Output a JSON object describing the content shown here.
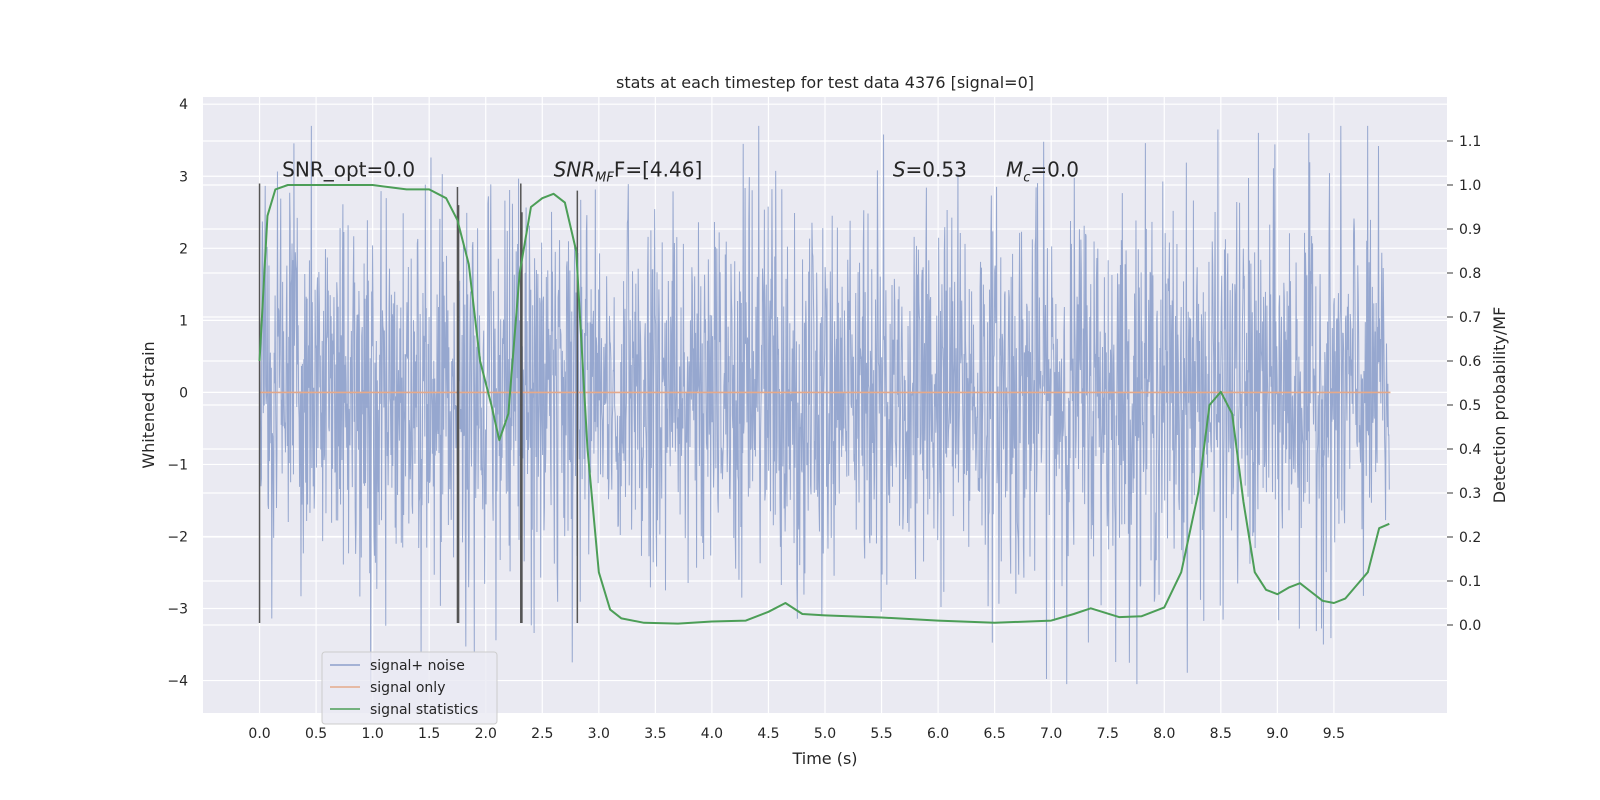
{
  "chart_data": {
    "type": "line",
    "title": "stats at each timestep for test data 4376 [signal=0]",
    "xlabel": "Time (s)",
    "ylabel_left": "Whitened strain",
    "ylabel_right": "Detection probability/MF",
    "xlim": [
      -0.5,
      10.5
    ],
    "ylim_left": [
      -4.45,
      4.1
    ],
    "ylim_right": [
      -0.2,
      1.2
    ],
    "x_ticks": [
      0.0,
      0.5,
      1.0,
      1.5,
      2.0,
      2.5,
      3.0,
      3.5,
      4.0,
      4.5,
      5.0,
      5.5,
      6.0,
      6.5,
      7.0,
      7.5,
      8.0,
      8.5,
      9.0,
      9.5
    ],
    "x_tick_labels": [
      "0.0",
      "0.5",
      "1.0",
      "1.5",
      "2.0",
      "2.5",
      "3.0",
      "3.5",
      "4.0",
      "4.5",
      "5.0",
      "5.5",
      "6.0",
      "6.5",
      "7.0",
      "7.5",
      "8.0",
      "8.5",
      "9.0",
      "9.5"
    ],
    "y_ticks_left": [
      4,
      3,
      2,
      1,
      0,
      -1,
      -2,
      -3,
      -4
    ],
    "y_tick_labels_left": [
      "4",
      "3",
      "2",
      "1",
      "0",
      "−1",
      "−2",
      "−3",
      "−4"
    ],
    "y_ticks_right": [
      1.1,
      1.0,
      0.9,
      0.8,
      0.7,
      0.6,
      0.5,
      0.4,
      0.3,
      0.2,
      0.1,
      0.0
    ],
    "y_tick_labels_right": [
      "1.1",
      "1.0",
      "0.9",
      "0.8",
      "0.7",
      "0.6",
      "0.5",
      "0.4",
      "0.3",
      "0.2",
      "0.1",
      "0.0"
    ],
    "grid": true,
    "legend_position": "lower-left",
    "legend": [
      "signal+ noise",
      "signal only",
      "signal statistics"
    ],
    "annotations": {
      "snr_opt": {
        "text": "SNR_opt=0.0",
        "x": 0.2,
        "y": 3.0
      },
      "snr_mf": {
        "base": "SNR",
        "sub": "MF",
        "rest": "F=[4.46]",
        "x": 2.6,
        "y": 3.0
      },
      "s_stat": {
        "base": "S",
        "rest": "=0.53",
        "x": 5.6,
        "y": 3.0
      },
      "m_c": {
        "base": "M",
        "sub": "c",
        "rest": "=0.0",
        "x": 6.6,
        "y": 3.0
      }
    },
    "vertical_lines": [
      {
        "x": 0.0,
        "y0": -3.2,
        "y1": 2.9
      },
      {
        "x": 1.75,
        "y0": -3.2,
        "y1": 2.85
      },
      {
        "x": 1.76,
        "y0": -3.2,
        "y1": 2.6
      },
      {
        "x": 2.31,
        "y0": -3.2,
        "y1": 2.9
      },
      {
        "x": 2.32,
        "y0": -3.2,
        "y1": 2.5
      },
      {
        "x": 2.81,
        "y0": -3.2,
        "y1": 2.8
      }
    ],
    "series": [
      {
        "name": "signal+ noise",
        "axis": "left",
        "color": "#8da0cb",
        "t_range": [
          0.0,
          9.99
        ],
        "band_p10": -1.7,
        "band_p90": 1.7,
        "envelope_max_approx": 3.7,
        "envelope_min_approx": -4.05
      },
      {
        "name": "signal only",
        "axis": "left",
        "color": "#e5a98a",
        "x": [
          0.0,
          10.0
        ],
        "y": [
          0.0,
          0.0
        ]
      },
      {
        "name": "signal statistics",
        "axis": "right",
        "color": "#4c9e57",
        "x": [
          0.0,
          0.07,
          0.14,
          0.25,
          0.5,
          1.0,
          1.3,
          1.5,
          1.65,
          1.75,
          1.85,
          1.95,
          2.05,
          2.12,
          2.2,
          2.3,
          2.4,
          2.5,
          2.6,
          2.7,
          2.8,
          2.9,
          3.0,
          3.1,
          3.2,
          3.4,
          3.7,
          4.0,
          4.3,
          4.5,
          4.65,
          4.8,
          5.0,
          5.5,
          6.0,
          6.5,
          7.0,
          7.2,
          7.35,
          7.6,
          7.8,
          8.0,
          8.15,
          8.3,
          8.4,
          8.5,
          8.6,
          8.7,
          8.8,
          8.9,
          9.0,
          9.1,
          9.2,
          9.3,
          9.4,
          9.5,
          9.6,
          9.7,
          9.8,
          9.9,
          9.99
        ],
        "y": [
          0.6,
          0.93,
          0.99,
          1.0,
          1.0,
          1.0,
          0.99,
          0.99,
          0.97,
          0.92,
          0.82,
          0.6,
          0.5,
          0.42,
          0.48,
          0.8,
          0.95,
          0.97,
          0.98,
          0.96,
          0.85,
          0.4,
          0.12,
          0.035,
          0.015,
          0.005,
          0.003,
          0.008,
          0.01,
          0.03,
          0.05,
          0.025,
          0.022,
          0.017,
          0.01,
          0.005,
          0.01,
          0.025,
          0.038,
          0.018,
          0.02,
          0.04,
          0.12,
          0.3,
          0.5,
          0.53,
          0.48,
          0.28,
          0.12,
          0.08,
          0.07,
          0.085,
          0.095,
          0.075,
          0.055,
          0.05,
          0.06,
          0.09,
          0.12,
          0.22,
          0.23
        ]
      }
    ]
  }
}
